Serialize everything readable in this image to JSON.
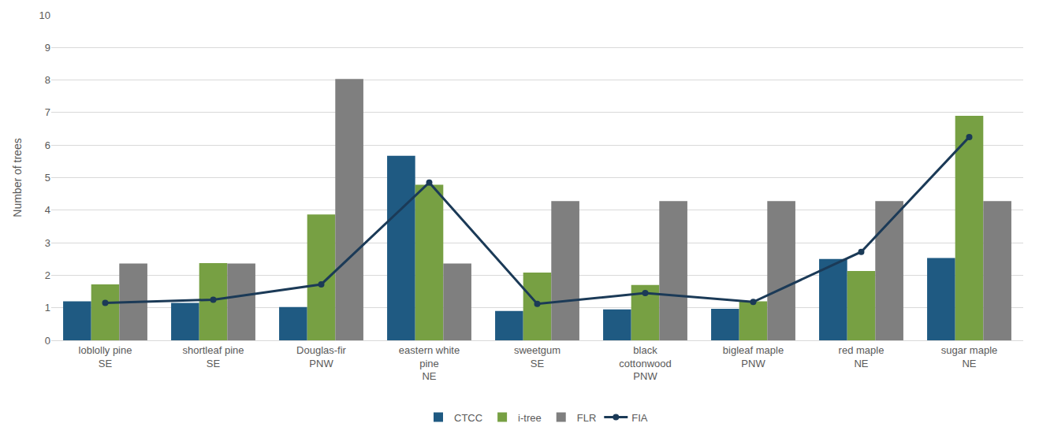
{
  "chart_data": {
    "type": "bar",
    "y_label": "Number of trees",
    "categories": [
      "loblolly pine\nSE",
      "shortleaf pine\nSE",
      "Douglas-fir\nPNW",
      "eastern white\npine\nNE",
      "sweetgum\nSE",
      "black\ncottonwood\nPNW",
      "bigleaf maple\nPNW",
      "red maple\nNE",
      "sugar maple\nNE"
    ],
    "series": [
      {
        "name": "CTCC",
        "type": "bar",
        "color": "#1f5a82",
        "values": [
          1.2,
          1.15,
          1.02,
          5.67,
          0.9,
          0.95,
          0.97,
          2.5,
          2.53
        ]
      },
      {
        "name": "i-tree",
        "type": "bar",
        "color": "#77a043",
        "values": [
          1.72,
          2.37,
          3.87,
          4.78,
          2.08,
          1.7,
          1.2,
          2.13,
          6.9
        ]
      },
      {
        "name": "FLR",
        "type": "bar",
        "color": "#7f7f7f",
        "values": [
          2.36,
          2.36,
          8.03,
          2.36,
          4.28,
          4.28,
          4.28,
          4.28,
          4.28
        ]
      },
      {
        "name": "FIA",
        "type": "line",
        "color": "#1b3a57",
        "marker": "circle",
        "values": [
          1.15,
          1.25,
          1.72,
          4.85,
          1.12,
          1.45,
          1.18,
          2.72,
          6.25
        ]
      }
    ],
    "ylim": [
      0,
      10
    ],
    "yticks": [
      0,
      1,
      2,
      3,
      4,
      5,
      6,
      7,
      8,
      9,
      10
    ],
    "grid": true,
    "legend": "bottom"
  }
}
